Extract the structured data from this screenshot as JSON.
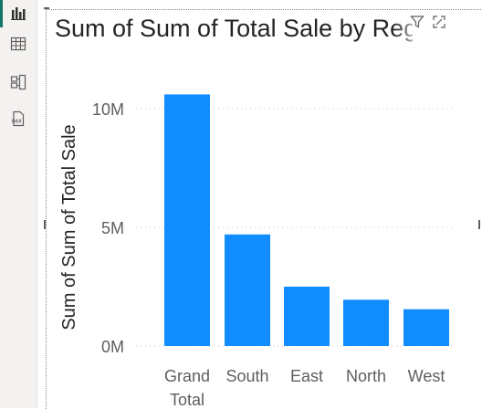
{
  "nav": {
    "items": [
      {
        "name": "report-view-icon",
        "active": true
      },
      {
        "name": "table-view-icon",
        "active": false
      },
      {
        "name": "model-view-icon",
        "active": false
      },
      {
        "name": "dax-query-view-icon",
        "active": false
      }
    ],
    "active_color": "#117865"
  },
  "visual": {
    "title": "Sum of Sum of Total Sale by Region"
  },
  "chart_data": {
    "type": "bar",
    "title": "Sum of Sum of Total Sale by Region",
    "xlabel": "",
    "ylabel": "Sum of Sum of Total Sale",
    "categories": [
      "Grand Total",
      "South",
      "East",
      "North",
      "West"
    ],
    "category_lines": [
      [
        "Grand",
        "Total"
      ],
      [
        "South"
      ],
      [
        "East"
      ],
      [
        "North"
      ],
      [
        "West"
      ]
    ],
    "values": [
      10600000,
      4700000,
      2500000,
      1950000,
      1550000
    ],
    "ylim": [
      0,
      10000000
    ],
    "yticks": [
      0,
      5000000,
      10000000
    ],
    "ytick_labels": [
      "0M",
      "5M",
      "10M"
    ],
    "bar_color": "#118dff",
    "grid": true
  }
}
